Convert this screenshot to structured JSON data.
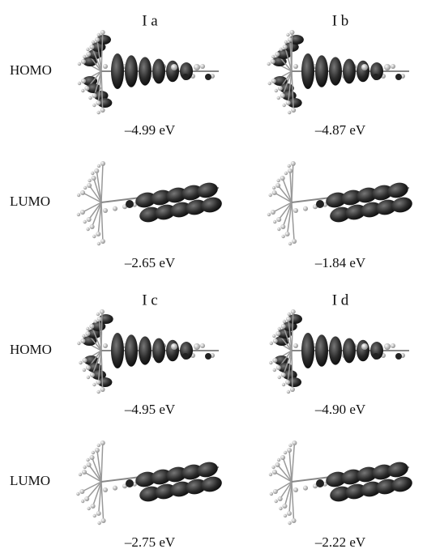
{
  "groups": [
    {
      "orbitals": [
        "HOMO",
        "LUMO"
      ],
      "molecules": [
        {
          "label": "I a",
          "energies": [
            "–4.99 eV",
            "–2.65 eV"
          ]
        },
        {
          "label": "I b",
          "energies": [
            "–4.87 eV",
            "–1.84 eV"
          ]
        }
      ]
    },
    {
      "orbitals": [
        "HOMO",
        "LUMO"
      ],
      "molecules": [
        {
          "label": "I c",
          "energies": [
            "–4.95 eV",
            "–2.75 eV"
          ]
        },
        {
          "label": "I d",
          "energies": [
            "–4.90 eV",
            "–2.22 eV"
          ]
        }
      ]
    }
  ]
}
